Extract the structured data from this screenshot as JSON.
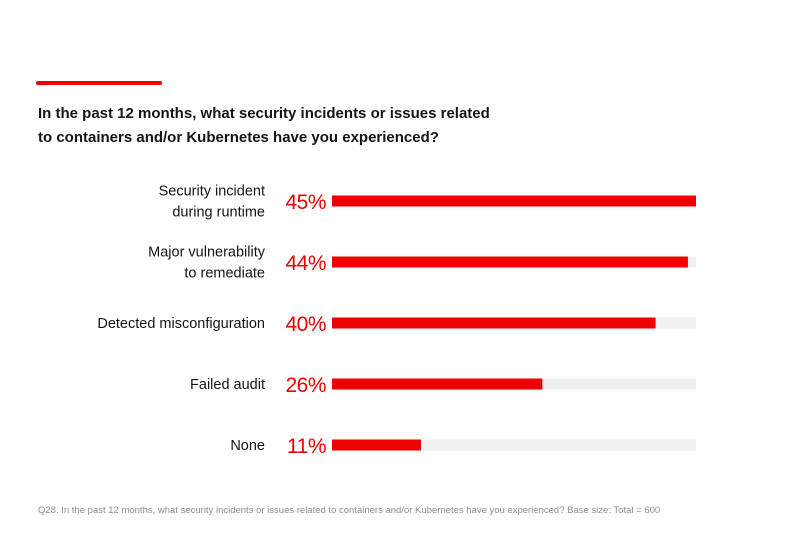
{
  "title": {
    "line1": "In the past 12 months, what security incidents or issues related",
    "line2": "to containers and/or Kubernetes have you experienced?"
  },
  "colors": {
    "accent": "#ee0000",
    "track": "#f0f0f0",
    "text": "#151515",
    "muted": "#8a8d90"
  },
  "chart_data": {
    "type": "bar",
    "orientation": "horizontal",
    "title": "In the past 12 months, what security incidents or issues related to containers and/or Kubernetes have you experienced?",
    "categories": [
      [
        "Security incident",
        "during runtime"
      ],
      [
        "Major vulnerability",
        "to remediate"
      ],
      [
        "Detected misconfiguration"
      ],
      [
        "Failed audit"
      ],
      [
        "None"
      ]
    ],
    "values": [
      45,
      44,
      40,
      26,
      11
    ],
    "value_labels": [
      "45%",
      "44%",
      "40%",
      "26%",
      "11%"
    ],
    "unit": "%",
    "xlim": [
      0,
      45
    ]
  },
  "footnote": "Q28. In the past 12 months, what security incidents or issues related to containers and/or Kubernetes have you experienced? Base size: Total = 600"
}
